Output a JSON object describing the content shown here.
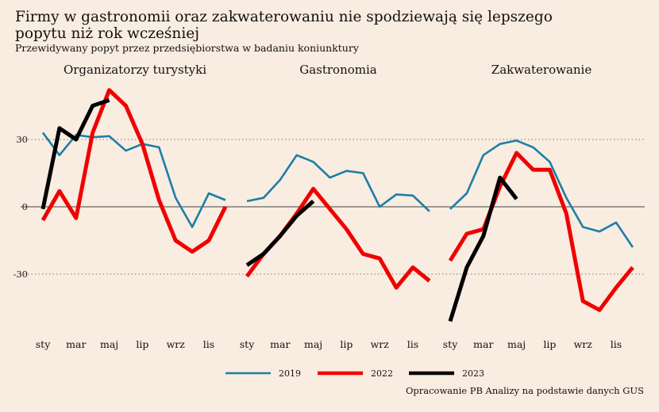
{
  "title": "Firmy w gastronomii oraz zakwaterowaniu nie spodziewają się lepszego popytu niż rok wcześniej",
  "subtitle": "Przewidywany popyt przez przedsiębiorstwa w badaniu koniunktury",
  "source": "Opracowanie PB Analizy na podstawie danych GUS",
  "colors": {
    "2019": "#1a7fa8",
    "2022": "#f00000",
    "2023": "#000000",
    "background": "#f9ece0"
  },
  "chart_data": {
    "type": "line",
    "y_ticks": [
      30,
      0,
      -30
    ],
    "y_tick_labels": [
      "30",
      "0",
      "-30"
    ],
    "ylim": [
      -52,
      52
    ],
    "x_tick_labels": [
      "sty",
      "mar",
      "maj",
      "lip",
      "wrz",
      "lis"
    ],
    "x_tick_months": [
      1,
      3,
      5,
      7,
      9,
      11
    ],
    "legend": [
      "2019",
      "2022",
      "2023"
    ],
    "legend_position": "bottom",
    "grid": "dotted horizontal at 30 and -30",
    "panels": [
      {
        "name": "Organizatorzy turystyki",
        "series": [
          {
            "name": "2019",
            "values": [
              33,
              23,
              32,
              31,
              31.5,
              25,
              28,
              26.5,
              4,
              -9,
              6,
              3
            ]
          },
          {
            "name": "2022",
            "values": [
              -6,
              7,
              -5,
              33,
              52,
              45,
              28,
              3,
              -15,
              -20,
              -15,
              0
            ]
          },
          {
            "name": "2023",
            "values": [
              -1,
              35,
              30,
              45,
              47.5
            ]
          }
        ]
      },
      {
        "name": "Gastronomia",
        "series": [
          {
            "name": "2019",
            "values": [
              2.5,
              4,
              12,
              23,
              20,
              13,
              16,
              15,
              0,
              5.5,
              5,
              -2
            ]
          },
          {
            "name": "2022",
            "values": [
              -31,
              -21,
              -13,
              -3,
              8,
              -1,
              -10,
              -21,
              -23,
              -36,
              -27,
              -33
            ]
          },
          {
            "name": "2023",
            "values": [
              -26,
              -21,
              -13,
              -4,
              2.5
            ]
          }
        ]
      },
      {
        "name": "Zakwaterowanie",
        "series": [
          {
            "name": "2019",
            "values": [
              -1,
              6,
              23,
              28,
              29.5,
              26.5,
              20,
              4,
              -9,
              -11,
              -7,
              -18
            ]
          },
          {
            "name": "2022",
            "values": [
              -24,
              -12,
              -10,
              9,
              24,
              16.5,
              16.5,
              -3,
              -42,
              -46,
              -36,
              -27
            ]
          },
          {
            "name": "2023",
            "values": [
              -51,
              -27,
              -13,
              13,
              3.5
            ]
          }
        ]
      }
    ]
  }
}
